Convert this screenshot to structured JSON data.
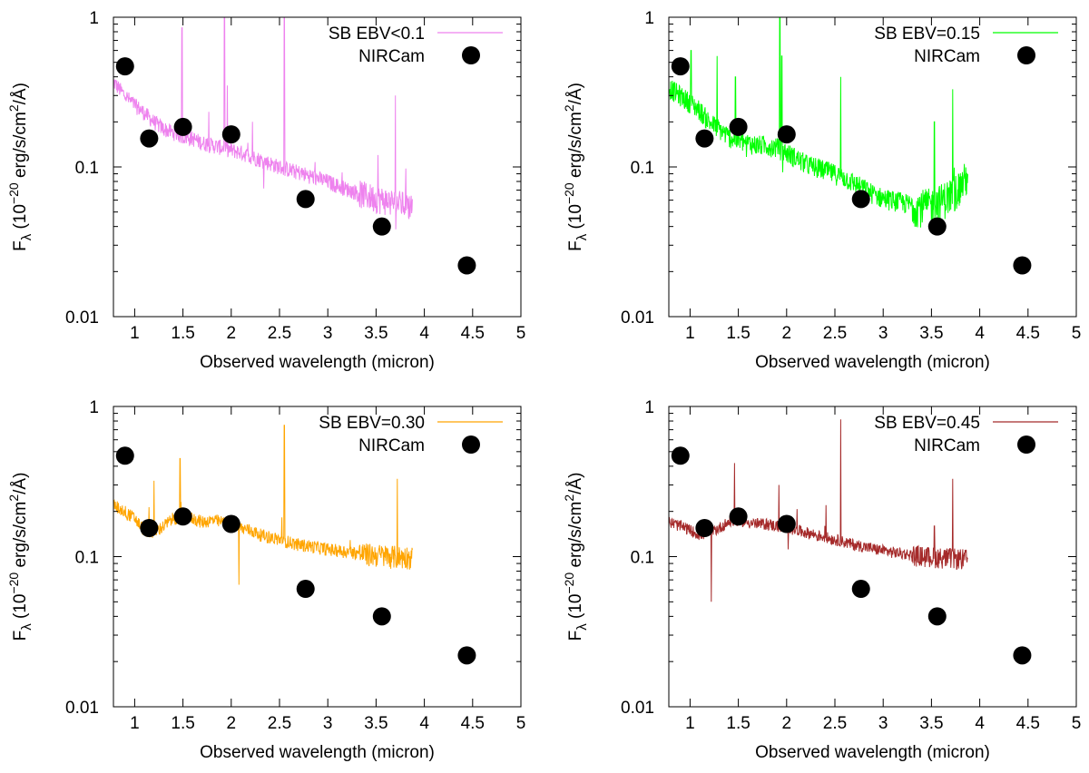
{
  "figure": {
    "xlabel": "Observed wavelength (micron)",
    "ylabel_main": "F",
    "ylabel_sub": "λ",
    "ylabel_rest": " (10",
    "ylabel_exp": "−20",
    "ylabel_unit": " erg/s/cm",
    "ylabel_unit_exp": "2",
    "ylabel_tail": "/Å)"
  },
  "chart_data": [
    {
      "type": "line",
      "title": "",
      "xlabel": "Observed wavelength (micron)",
      "ylabel": "Fλ (10^-20 erg/s/cm^2/Å)",
      "xlim": [
        0.78,
        5.0
      ],
      "ylim": [
        0.01,
        1.0
      ],
      "yscale": "log",
      "xticks": [
        "1",
        "1.5",
        "2",
        "2.5",
        "3",
        "3.5",
        "4",
        "4.5",
        "5"
      ],
      "yticks": [
        "0.01",
        "0.1",
        "1"
      ],
      "legend": "top-right",
      "series": [
        {
          "name": "SB EBV<0.1",
          "color": "#ee82ee",
          "x": [
            0.78,
            0.9,
            1.0,
            1.1,
            1.2,
            1.3,
            1.4,
            1.5,
            1.6,
            1.7,
            1.8,
            1.9,
            2.0,
            2.1,
            2.2,
            2.3,
            2.4,
            2.5,
            2.6,
            2.7,
            2.8,
            2.9,
            3.0,
            3.1,
            3.2,
            3.3,
            3.4,
            3.5,
            3.6,
            3.7,
            3.8,
            3.88
          ],
          "values": [
            0.37,
            0.3,
            0.26,
            0.23,
            0.2,
            0.18,
            0.17,
            0.16,
            0.155,
            0.145,
            0.14,
            0.135,
            0.13,
            0.125,
            0.118,
            0.112,
            0.106,
            0.1,
            0.096,
            0.092,
            0.088,
            0.084,
            0.08,
            0.075,
            0.071,
            0.068,
            0.065,
            0.062,
            0.06,
            0.058,
            0.056,
            0.055
          ],
          "emission_lines": [
            {
              "x": 1.49,
              "peak": 0.85
            },
            {
              "x": 1.93,
              "peak": 1.0
            },
            {
              "x": 1.96,
              "peak": 0.35
            },
            {
              "x": 2.55,
              "peak": 1.0
            },
            {
              "x": 2.22,
              "peak": 0.2
            },
            {
              "x": 3.7,
              "peak": 0.3
            },
            {
              "x": 3.52,
              "peak": 0.12
            }
          ]
        },
        {
          "name": "NIRCam",
          "type": "scatter",
          "color": "#000000",
          "x": [
            0.9,
            1.15,
            1.5,
            2.0,
            2.77,
            3.56,
            4.44
          ],
          "values": [
            0.47,
            0.155,
            0.185,
            0.165,
            0.061,
            0.04,
            0.022
          ]
        }
      ]
    },
    {
      "type": "line",
      "title": "",
      "xlabel": "Observed wavelength (micron)",
      "ylabel": "Fλ (10^-20 erg/s/cm^2/Å)",
      "xlim": [
        0.78,
        5.0
      ],
      "ylim": [
        0.01,
        1.0
      ],
      "yscale": "log",
      "xticks": [
        "1",
        "1.5",
        "2",
        "2.5",
        "3",
        "3.5",
        "4",
        "4.5",
        "5"
      ],
      "yticks": [
        "0.01",
        "0.1",
        "1"
      ],
      "legend": "top-right",
      "series": [
        {
          "name": "SB EBV=0.15",
          "color": "#00ff00",
          "x": [
            0.78,
            0.9,
            1.0,
            1.1,
            1.2,
            1.3,
            1.4,
            1.5,
            1.6,
            1.7,
            1.8,
            1.9,
            2.0,
            2.1,
            2.2,
            2.3,
            2.4,
            2.5,
            2.6,
            2.7,
            2.8,
            2.9,
            3.0,
            3.1,
            3.2,
            3.3,
            3.4,
            3.5,
            3.6,
            3.7,
            3.8,
            3.88
          ],
          "values": [
            0.34,
            0.3,
            0.27,
            0.24,
            0.2,
            0.18,
            0.16,
            0.15,
            0.145,
            0.14,
            0.14,
            0.135,
            0.125,
            0.115,
            0.105,
            0.1,
            0.095,
            0.09,
            0.085,
            0.078,
            0.072,
            0.066,
            0.062,
            0.06,
            0.058,
            0.056,
            0.055,
            0.056,
            0.06,
            0.066,
            0.075,
            0.09
          ],
          "emission_lines": [
            {
              "x": 1.01,
              "peak": 0.6
            },
            {
              "x": 1.28,
              "peak": 0.55
            },
            {
              "x": 1.47,
              "peak": 0.4
            },
            {
              "x": 1.93,
              "peak": 1.0
            },
            {
              "x": 1.95,
              "peak": 0.55
            },
            {
              "x": 2.56,
              "peak": 0.4
            },
            {
              "x": 3.53,
              "peak": 0.2
            },
            {
              "x": 3.72,
              "peak": 0.33
            }
          ]
        },
        {
          "name": "NIRCam",
          "type": "scatter",
          "color": "#000000",
          "x": [
            0.9,
            1.15,
            1.5,
            2.0,
            2.77,
            3.56,
            4.44
          ],
          "values": [
            0.47,
            0.155,
            0.185,
            0.165,
            0.061,
            0.04,
            0.022
          ]
        }
      ]
    },
    {
      "type": "line",
      "title": "",
      "xlabel": "Observed wavelength (micron)",
      "ylabel": "Fλ (10^-20 erg/s/cm^2/Å)",
      "xlim": [
        0.78,
        5.0
      ],
      "ylim": [
        0.01,
        1.0
      ],
      "yscale": "log",
      "xticks": [
        "1",
        "1.5",
        "2",
        "2.5",
        "3",
        "3.5",
        "4",
        "4.5",
        "5"
      ],
      "yticks": [
        "0.01",
        "0.1",
        "1"
      ],
      "legend": "top-right",
      "series": [
        {
          "name": "SB EBV=0.30",
          "color": "#ffa500",
          "x": [
            0.78,
            0.9,
            1.0,
            1.1,
            1.2,
            1.3,
            1.4,
            1.5,
            1.6,
            1.7,
            1.8,
            1.9,
            2.0,
            2.1,
            2.2,
            2.3,
            2.4,
            2.5,
            2.6,
            2.7,
            2.8,
            2.9,
            3.0,
            3.1,
            3.2,
            3.3,
            3.4,
            3.5,
            3.6,
            3.7,
            3.8,
            3.88
          ],
          "values": [
            0.22,
            0.2,
            0.18,
            0.15,
            0.145,
            0.16,
            0.18,
            0.185,
            0.18,
            0.17,
            0.175,
            0.17,
            0.165,
            0.155,
            0.15,
            0.14,
            0.135,
            0.13,
            0.125,
            0.12,
            0.118,
            0.115,
            0.112,
            0.11,
            0.108,
            0.106,
            0.104,
            0.103,
            0.102,
            0.1,
            0.1,
            0.1
          ],
          "emission_lines": [
            {
              "x": 1.2,
              "peak": 0.32
            },
            {
              "x": 1.47,
              "peak": 0.45
            },
            {
              "x": 2.55,
              "peak": 0.75
            },
            {
              "x": 3.72,
              "peak": 0.33
            },
            {
              "x": 2.08,
              "peak": 0.065
            }
          ]
        },
        {
          "name": "NIRCam",
          "type": "scatter",
          "color": "#000000",
          "x": [
            0.9,
            1.15,
            1.5,
            2.0,
            2.77,
            3.56,
            4.44
          ],
          "values": [
            0.47,
            0.155,
            0.185,
            0.165,
            0.061,
            0.04,
            0.022
          ]
        }
      ]
    },
    {
      "type": "line",
      "title": "",
      "xlabel": "Observed wavelength (micron)",
      "ylabel": "Fλ (10^-20 erg/s/cm^2/Å)",
      "xlim": [
        0.78,
        5.0
      ],
      "ylim": [
        0.01,
        1.0
      ],
      "yscale": "log",
      "xticks": [
        "1",
        "1.5",
        "2",
        "2.5",
        "3",
        "3.5",
        "4",
        "4.5",
        "5"
      ],
      "yticks": [
        "0.01",
        "0.1",
        "1"
      ],
      "legend": "top-right",
      "series": [
        {
          "name": "SB EBV=0.45",
          "color": "#a52a2a",
          "x": [
            0.78,
            0.9,
            1.0,
            1.1,
            1.2,
            1.3,
            1.4,
            1.5,
            1.6,
            1.7,
            1.8,
            1.9,
            2.0,
            2.1,
            2.2,
            2.3,
            2.4,
            2.5,
            2.6,
            2.7,
            2.8,
            2.9,
            3.0,
            3.1,
            3.2,
            3.3,
            3.4,
            3.5,
            3.6,
            3.7,
            3.8,
            3.88
          ],
          "values": [
            0.17,
            0.16,
            0.15,
            0.14,
            0.145,
            0.155,
            0.17,
            0.175,
            0.17,
            0.165,
            0.165,
            0.16,
            0.155,
            0.15,
            0.145,
            0.14,
            0.135,
            0.13,
            0.125,
            0.12,
            0.117,
            0.113,
            0.11,
            0.107,
            0.105,
            0.103,
            0.101,
            0.1,
            0.099,
            0.098,
            0.097,
            0.096
          ],
          "emission_lines": [
            {
              "x": 1.22,
              "peak": 0.05
            },
            {
              "x": 1.46,
              "peak": 0.42
            },
            {
              "x": 1.92,
              "peak": 0.3
            },
            {
              "x": 2.56,
              "peak": 0.82
            },
            {
              "x": 3.53,
              "peak": 0.16
            },
            {
              "x": 3.72,
              "peak": 0.33
            }
          ]
        },
        {
          "name": "NIRCam",
          "type": "scatter",
          "color": "#000000",
          "x": [
            0.9,
            1.15,
            1.5,
            2.0,
            2.77,
            3.56,
            4.44
          ],
          "values": [
            0.47,
            0.155,
            0.185,
            0.165,
            0.061,
            0.04,
            0.022
          ]
        }
      ]
    }
  ]
}
